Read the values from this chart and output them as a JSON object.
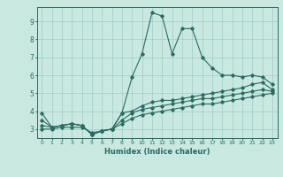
{
  "title": "",
  "xlabel": "Humidex (Indice chaleur)",
  "ylabel": "",
  "bg_color": "#c8e8e0",
  "grid_color": "#a0cccc",
  "line_color": "#2a6b62",
  "xlim": [
    -0.5,
    23.5
  ],
  "ylim": [
    2.5,
    9.8
  ],
  "xticks": [
    0,
    1,
    2,
    3,
    4,
    5,
    6,
    7,
    8,
    9,
    10,
    11,
    12,
    13,
    14,
    15,
    16,
    17,
    18,
    19,
    20,
    21,
    22,
    23
  ],
  "yticks": [
    3,
    4,
    5,
    6,
    7,
    8,
    9
  ],
  "series": {
    "line1": [
      3.9,
      3.1,
      3.2,
      3.3,
      3.2,
      2.7,
      2.9,
      3.0,
      3.9,
      5.9,
      7.2,
      9.5,
      9.3,
      7.2,
      8.6,
      8.6,
      7.0,
      6.4,
      6.0,
      6.0,
      5.9,
      6.0,
      5.9,
      5.5
    ],
    "line2": [
      3.5,
      3.1,
      3.2,
      3.3,
      3.2,
      2.7,
      2.9,
      3.0,
      3.9,
      4.0,
      4.3,
      4.5,
      4.6,
      4.6,
      4.7,
      4.8,
      4.9,
      5.0,
      5.1,
      5.2,
      5.3,
      5.5,
      5.6,
      5.2
    ],
    "line3": [
      3.2,
      3.1,
      3.2,
      3.3,
      3.2,
      2.7,
      2.9,
      3.0,
      3.5,
      3.9,
      4.1,
      4.2,
      4.3,
      4.4,
      4.5,
      4.6,
      4.7,
      4.7,
      4.8,
      4.9,
      5.0,
      5.1,
      5.2,
      5.1
    ],
    "line4": [
      3.0,
      3.0,
      3.1,
      3.1,
      3.1,
      2.8,
      2.9,
      3.0,
      3.3,
      3.6,
      3.8,
      3.9,
      4.0,
      4.1,
      4.2,
      4.3,
      4.4,
      4.4,
      4.5,
      4.6,
      4.7,
      4.8,
      4.9,
      5.0
    ]
  }
}
